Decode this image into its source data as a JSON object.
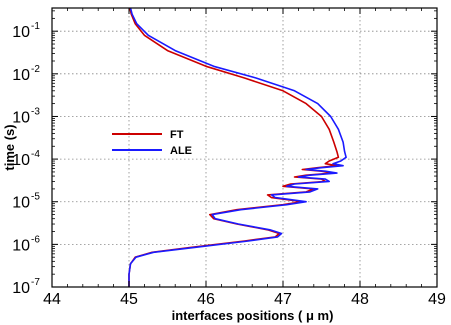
{
  "chart_data": {
    "type": "line",
    "xlabel": "interfaces positions ( μ m)",
    "ylabel": "time (s)",
    "xlim": [
      44,
      49
    ],
    "ylim": [
      1e-07,
      0.35
    ],
    "y_scale": "log",
    "x_ticks": [
      44,
      45,
      46,
      47,
      48,
      49
    ],
    "x_tick_labels": [
      "44",
      "45",
      "46",
      "47",
      "48",
      "49"
    ],
    "y_ticks": [
      {
        "value": 1e-07,
        "base": "10",
        "exp": "-7"
      },
      {
        "value": 1e-06,
        "base": "10",
        "exp": "-6"
      },
      {
        "value": 1e-05,
        "base": "10",
        "exp": "-5"
      },
      {
        "value": 0.0001,
        "base": "10",
        "exp": "-4"
      },
      {
        "value": 0.001,
        "base": "10",
        "exp": "-3"
      },
      {
        "value": 0.01,
        "base": "10",
        "exp": "-2"
      },
      {
        "value": 0.1,
        "base": "10",
        "exp": "-1"
      }
    ],
    "grid": true,
    "legend_position": "left",
    "series": [
      {
        "name": "FT",
        "color": "#cc0000",
        "points": [
          [
            45.0,
            1e-07
          ],
          [
            45.0,
            2e-07
          ],
          [
            45.02,
            3.5e-07
          ],
          [
            45.08,
            5e-07
          ],
          [
            45.3,
            6.5e-07
          ],
          [
            45.8,
            8.5e-07
          ],
          [
            46.5,
            1.2e-06
          ],
          [
            46.9,
            1.5e-06
          ],
          [
            46.95,
            1.8e-06
          ],
          [
            46.8,
            2.2e-06
          ],
          [
            46.4,
            3e-06
          ],
          [
            46.1,
            4e-06
          ],
          [
            46.05,
            5e-06
          ],
          [
            46.4,
            6.5e-06
          ],
          [
            47.0,
            8.5e-06
          ],
          [
            47.25,
            1e-05
          ],
          [
            46.85,
            1.25e-05
          ],
          [
            46.8,
            1.45e-05
          ],
          [
            47.3,
            1.7e-05
          ],
          [
            47.4,
            2e-05
          ],
          [
            47.0,
            2.3e-05
          ],
          [
            47.1,
            2.6e-05
          ],
          [
            47.55,
            3e-05
          ],
          [
            47.5,
            3.4e-05
          ],
          [
            47.15,
            3.8e-05
          ],
          [
            47.3,
            4.2e-05
          ],
          [
            47.65,
            4.7e-05
          ],
          [
            47.5,
            5.2e-05
          ],
          [
            47.25,
            5.7e-05
          ],
          [
            47.45,
            6.3e-05
          ],
          [
            47.7,
            7e-05
          ],
          [
            47.55,
            7.8e-05
          ],
          [
            47.6,
            9e-05
          ],
          [
            47.72,
            0.00011
          ],
          [
            47.7,
            0.00015
          ],
          [
            47.66,
            0.00025
          ],
          [
            47.6,
            0.0005
          ],
          [
            47.5,
            0.001
          ],
          [
            47.3,
            0.002
          ],
          [
            47.0,
            0.004
          ],
          [
            46.5,
            0.008
          ],
          [
            46.0,
            0.015
          ],
          [
            45.5,
            0.035
          ],
          [
            45.2,
            0.08
          ],
          [
            45.08,
            0.15
          ],
          [
            45.03,
            0.25
          ],
          [
            45.01,
            0.35
          ]
        ]
      },
      {
        "name": "ALE",
        "color": "#1a1aff",
        "points": [
          [
            45.0,
            1e-07
          ],
          [
            45.0,
            2e-07
          ],
          [
            45.02,
            3.5e-07
          ],
          [
            45.09,
            5e-07
          ],
          [
            45.32,
            6.5e-07
          ],
          [
            45.85,
            8.5e-07
          ],
          [
            46.55,
            1.2e-06
          ],
          [
            46.93,
            1.5e-06
          ],
          [
            46.98,
            1.8e-06
          ],
          [
            46.83,
            2.2e-06
          ],
          [
            46.42,
            3e-06
          ],
          [
            46.12,
            4e-06
          ],
          [
            46.08,
            5e-06
          ],
          [
            46.45,
            6.5e-06
          ],
          [
            47.05,
            8.5e-06
          ],
          [
            47.3,
            1e-05
          ],
          [
            46.9,
            1.25e-05
          ],
          [
            46.85,
            1.45e-05
          ],
          [
            47.35,
            1.7e-05
          ],
          [
            47.45,
            2e-05
          ],
          [
            47.05,
            2.3e-05
          ],
          [
            47.15,
            2.6e-05
          ],
          [
            47.6,
            3e-05
          ],
          [
            47.55,
            3.4e-05
          ],
          [
            47.2,
            3.8e-05
          ],
          [
            47.35,
            4.2e-05
          ],
          [
            47.7,
            4.7e-05
          ],
          [
            47.55,
            5.2e-05
          ],
          [
            47.3,
            5.7e-05
          ],
          [
            47.5,
            6.3e-05
          ],
          [
            47.78,
            7e-05
          ],
          [
            47.65,
            7.8e-05
          ],
          [
            47.75,
            9e-05
          ],
          [
            47.82,
            0.00011
          ],
          [
            47.8,
            0.00015
          ],
          [
            47.78,
            0.00025
          ],
          [
            47.72,
            0.0005
          ],
          [
            47.62,
            0.001
          ],
          [
            47.45,
            0.002
          ],
          [
            47.15,
            0.004
          ],
          [
            46.65,
            0.008
          ],
          [
            46.1,
            0.015
          ],
          [
            45.6,
            0.035
          ],
          [
            45.25,
            0.08
          ],
          [
            45.1,
            0.15
          ],
          [
            45.04,
            0.25
          ],
          [
            45.02,
            0.35
          ]
        ]
      }
    ]
  }
}
